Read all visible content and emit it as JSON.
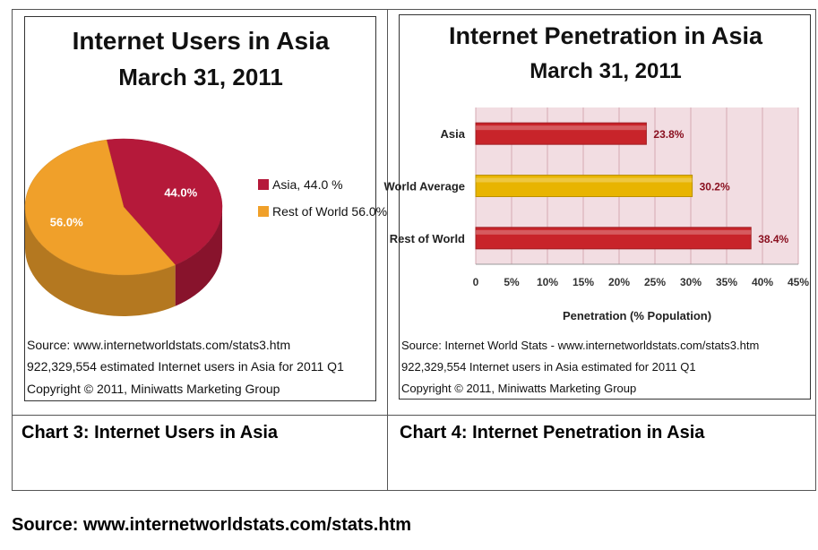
{
  "chart_data": [
    {
      "type": "pie",
      "title": "Internet Users in Asia",
      "subtitle": "March 31,  2011",
      "slices": [
        {
          "name": "Asia, 44.0 %",
          "label": "44.0%",
          "value": 44.0,
          "color": "#B5193A"
        },
        {
          "name": "Rest of World 56.0%",
          "label": "56.0%",
          "value": 56.0,
          "color": "#F0A02A"
        }
      ],
      "source_lines": [
        "Source:  www.internetworldstats.com/stats3.htm",
        "922,329,554 estimated Internet users in Asia for 2011 Q1",
        "Copyright © 2011, Miniwatts Marketing Group"
      ]
    },
    {
      "type": "bar",
      "orientation": "horizontal",
      "title": "Internet Penetration in Asia",
      "subtitle": "March 31, 2011",
      "categories": [
        "Asia",
        "World Average",
        "Rest of World"
      ],
      "values": [
        23.8,
        30.2,
        38.4
      ],
      "value_labels": [
        "23.8%",
        "30.2%",
        "38.4%"
      ],
      "colors": [
        "#C8242A",
        "#E8B400",
        "#C8242A"
      ],
      "xlabel": "Penetration (% Population)",
      "ylabel": "",
      "xlim": [
        0,
        45
      ],
      "xticks": [
        "0",
        "5%",
        "10%",
        "15%",
        "20%",
        "25%",
        "30%",
        "35%",
        "40%",
        "45%"
      ],
      "grid": true,
      "background": "#F2DDE2",
      "source_lines": [
        "Source: Internet World Stats - www.internetworldstats.com/stats3.htm",
        "922,329,554 Internet users in Asia estimated for 2011 Q1",
        "Copyright © 2011, Miniwatts Marketing Group"
      ]
    }
  ],
  "captions": {
    "chart3": "Chart 3: Internet Users in Asia",
    "chart4": "Chart 4: Internet Penetration in Asia"
  },
  "footer": {
    "source": "Source: www.internetworldstats.com/stats.htm"
  }
}
